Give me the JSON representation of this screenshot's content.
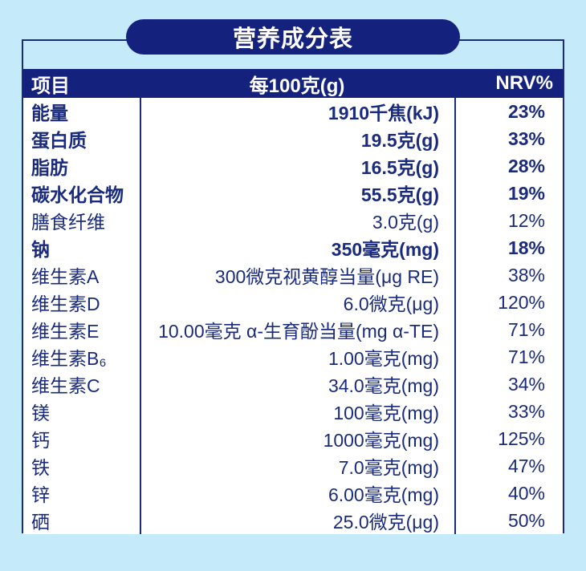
{
  "title": "营养成分表",
  "table": {
    "headers": {
      "item": "项目",
      "per100g": "每100克(g)",
      "nrv": "NRV%"
    },
    "rows": [
      {
        "name": "能量",
        "value": "1910千焦(kJ)",
        "nrv": "23%",
        "bold": true
      },
      {
        "name": "蛋白质",
        "value": "19.5克(g)",
        "nrv": "33%",
        "bold": true
      },
      {
        "name": "脂肪",
        "value": "16.5克(g)",
        "nrv": "28%",
        "bold": true
      },
      {
        "name": "碳水化合物",
        "value": "55.5克(g)",
        "nrv": "19%",
        "bold": true
      },
      {
        "name": "膳食纤维",
        "value": "3.0克(g)",
        "nrv": "12%",
        "bold": false
      },
      {
        "name": "钠",
        "value": "350毫克(mg)",
        "nrv": "18%",
        "bold": true
      },
      {
        "name": "维生素A",
        "value": "300微克视黄醇当量(μg RE)",
        "nrv": "38%",
        "bold": false
      },
      {
        "name": "维生素D",
        "value": "6.0微克(μg)",
        "nrv": "120%",
        "bold": false
      },
      {
        "name": "维生素E",
        "value": "10.00毫克 α-生育酚当量(mg α-TE)",
        "nrv": "71%",
        "bold": false
      },
      {
        "name": "维生素B₆",
        "value": "1.00毫克(mg)",
        "nrv": "71%",
        "bold": false
      },
      {
        "name": "维生素C",
        "value": "34.0毫克(mg)",
        "nrv": "34%",
        "bold": false
      },
      {
        "name": "镁",
        "value": "100毫克(mg)",
        "nrv": "33%",
        "bold": false
      },
      {
        "name": "钙",
        "value": "1000毫克(mg)",
        "nrv": "125%",
        "bold": false
      },
      {
        "name": "铁",
        "value": "7.0毫克(mg)",
        "nrv": "47%",
        "bold": false
      },
      {
        "name": "锌",
        "value": "6.00毫克(mg)",
        "nrv": "40%",
        "bold": false
      },
      {
        "name": "硒",
        "value": "25.0微克(μg)",
        "nrv": "50%",
        "bold": false
      }
    ]
  },
  "colors": {
    "navy": "#14227d",
    "border": "#1b2b80",
    "background": "#c5eaf9",
    "text": "#1a2b7e",
    "body": "#ffffff"
  }
}
